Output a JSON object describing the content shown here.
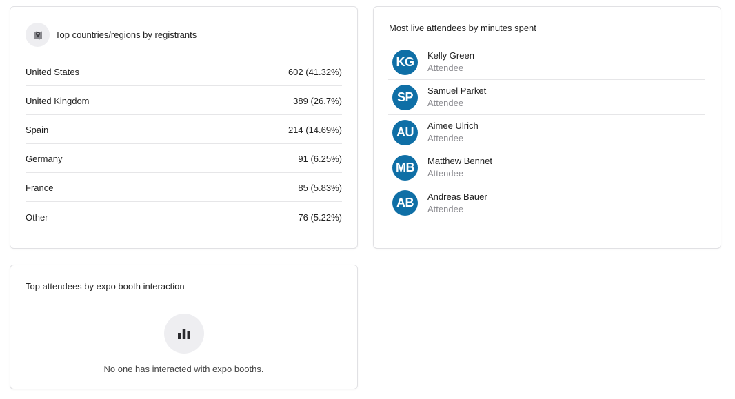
{
  "countries_card": {
    "title": "Top countries/regions by registrants",
    "icon": "map-pin-icon",
    "rows": [
      {
        "name": "United States",
        "value": "602 (41.32%)"
      },
      {
        "name": "United Kingdom",
        "value": "389 (26.7%)"
      },
      {
        "name": "Spain",
        "value": "214 (14.69%)"
      },
      {
        "name": "Germany",
        "value": "91 (6.25%)"
      },
      {
        "name": "France",
        "value": "85 (5.83%)"
      },
      {
        "name": "Other",
        "value": "76 (5.22%)"
      }
    ]
  },
  "attendees_card": {
    "title": "Most live attendees by minutes spent",
    "avatar_color": "#0f6fa6",
    "rows": [
      {
        "initials": "KG",
        "name": "Kelly Green",
        "role": "Attendee"
      },
      {
        "initials": "SP",
        "name": "Samuel Parket",
        "role": "Attendee"
      },
      {
        "initials": "AU",
        "name": "Aimee Ulrich",
        "role": "Attendee"
      },
      {
        "initials": "MB",
        "name": "Matthew Bennet",
        "role": "Attendee"
      },
      {
        "initials": "AB",
        "name": "Andreas Bauer",
        "role": "Attendee"
      }
    ]
  },
  "expo_card": {
    "title": "Top attendees by expo booth interaction",
    "empty_icon": "bar-chart-icon",
    "empty_message": "No one has interacted with expo booths."
  }
}
